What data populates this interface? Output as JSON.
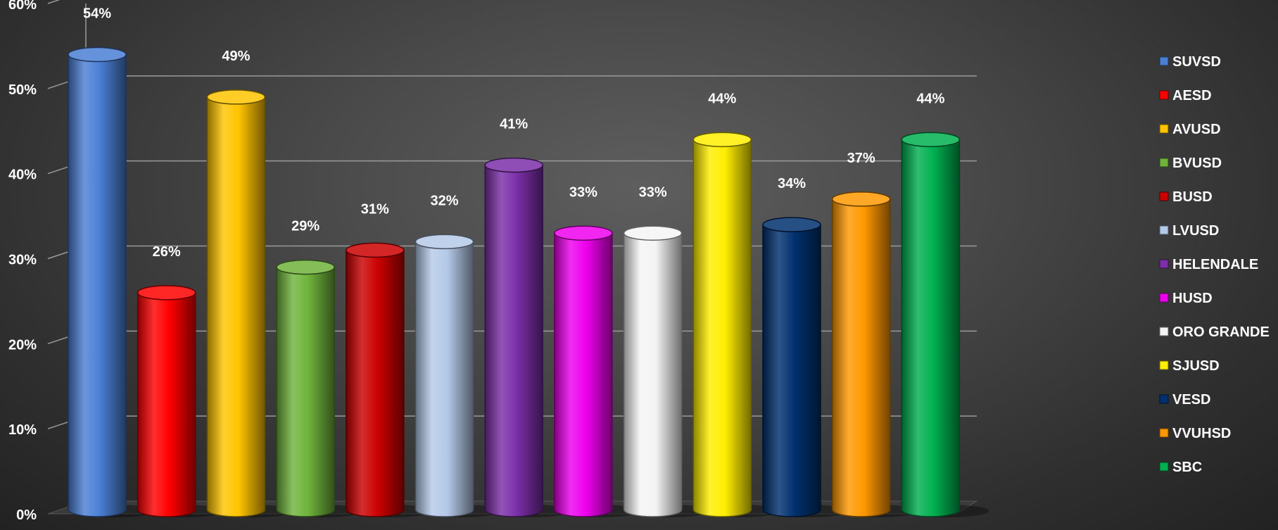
{
  "chart_data": {
    "type": "bar",
    "title": "",
    "xlabel": "",
    "ylabel": "",
    "ylim": [
      0,
      60
    ],
    "y_ticks": [
      "0%",
      "10%",
      "20%",
      "30%",
      "40%",
      "50%",
      "60%"
    ],
    "y_tick_values": [
      0,
      10,
      20,
      30,
      40,
      50,
      60
    ],
    "grid": true,
    "legend_position": "right",
    "categories": [
      "SUVSD",
      "AESD",
      "AVUSD",
      "BVUSD",
      "BUSD",
      "LVUSD",
      "HELENDALE",
      "HUSD",
      "ORO GRANDE",
      "SJUSD",
      "VESD",
      "VVUHSD",
      "SBC"
    ],
    "values": [
      54,
      26,
      49,
      29,
      31,
      32,
      41,
      33,
      33,
      44,
      34,
      37,
      44
    ],
    "data_labels": [
      "54%",
      "26%",
      "49%",
      "29%",
      "31%",
      "32%",
      "41%",
      "33%",
      "33%",
      "44%",
      "34%",
      "37%",
      "44%"
    ],
    "colors": [
      "#4a7fd4",
      "#ff0000",
      "#ffc400",
      "#6fb33c",
      "#cc0000",
      "#b4c9e8",
      "#7b2fa8",
      "#ee00ee",
      "#f4f4f4",
      "#ffee00",
      "#00306e",
      "#ff9800",
      "#00b050"
    ]
  }
}
